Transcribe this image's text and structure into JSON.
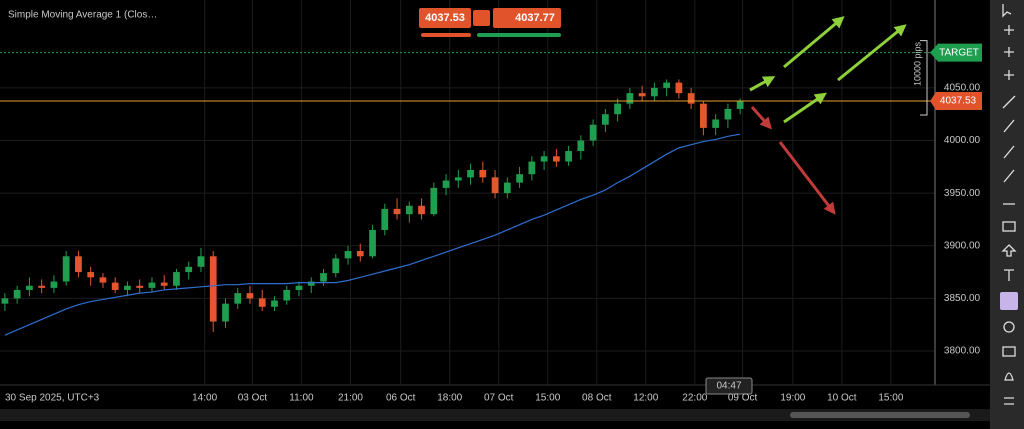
{
  "chart_data": {
    "type": "candlestick",
    "title": "Simple Moving Average 1 (Clos…",
    "x_start_label": "30 Sep 2025, UTC+3",
    "up_color": "#1f9e4f",
    "down_color": "#e4572e",
    "ohlc": [
      [
        3845,
        3855,
        3838,
        3850
      ],
      [
        3850,
        3862,
        3845,
        3858
      ],
      [
        3858,
        3870,
        3852,
        3862
      ],
      [
        3862,
        3868,
        3855,
        3860
      ],
      [
        3860,
        3872,
        3855,
        3866
      ],
      [
        3866,
        3895,
        3862,
        3890
      ],
      [
        3890,
        3895,
        3870,
        3875
      ],
      [
        3875,
        3880,
        3862,
        3870
      ],
      [
        3870,
        3874,
        3860,
        3865
      ],
      [
        3865,
        3870,
        3855,
        3858
      ],
      [
        3858,
        3866,
        3852,
        3862
      ],
      [
        3862,
        3868,
        3855,
        3860
      ],
      [
        3860,
        3870,
        3856,
        3865
      ],
      [
        3865,
        3872,
        3858,
        3862
      ],
      [
        3862,
        3878,
        3858,
        3875
      ],
      [
        3875,
        3885,
        3868,
        3880
      ],
      [
        3880,
        3898,
        3875,
        3890
      ],
      [
        3890,
        3895,
        3818,
        3828
      ],
      [
        3828,
        3850,
        3822,
        3845
      ],
      [
        3845,
        3860,
        3840,
        3855
      ],
      [
        3855,
        3862,
        3845,
        3850
      ],
      [
        3850,
        3858,
        3838,
        3842
      ],
      [
        3842,
        3852,
        3838,
        3848
      ],
      [
        3848,
        3862,
        3844,
        3858
      ],
      [
        3858,
        3866,
        3852,
        3862
      ],
      [
        3862,
        3870,
        3855,
        3866
      ],
      [
        3866,
        3878,
        3862,
        3874
      ],
      [
        3874,
        3892,
        3870,
        3888
      ],
      [
        3888,
        3900,
        3882,
        3895
      ],
      [
        3895,
        3902,
        3885,
        3890
      ],
      [
        3890,
        3920,
        3888,
        3915
      ],
      [
        3915,
        3940,
        3910,
        3935
      ],
      [
        3935,
        3945,
        3925,
        3930
      ],
      [
        3930,
        3942,
        3922,
        3938
      ],
      [
        3938,
        3945,
        3925,
        3930
      ],
      [
        3930,
        3960,
        3928,
        3955
      ],
      [
        3955,
        3968,
        3948,
        3962
      ],
      [
        3962,
        3972,
        3955,
        3965
      ],
      [
        3965,
        3978,
        3958,
        3972
      ],
      [
        3972,
        3980,
        3960,
        3965
      ],
      [
        3965,
        3972,
        3945,
        3950
      ],
      [
        3950,
        3965,
        3945,
        3960
      ],
      [
        3960,
        3975,
        3955,
        3968
      ],
      [
        3968,
        3985,
        3962,
        3980
      ],
      [
        3980,
        3990,
        3972,
        3985
      ],
      [
        3985,
        3992,
        3975,
        3980
      ],
      [
        3980,
        3995,
        3976,
        3990
      ],
      [
        3990,
        4005,
        3982,
        4000
      ],
      [
        4000,
        4020,
        3995,
        4015
      ],
      [
        4015,
        4030,
        4008,
        4025
      ],
      [
        4025,
        4040,
        4018,
        4035
      ],
      [
        4035,
        4050,
        4030,
        4045
      ],
      [
        4045,
        4052,
        4038,
        4042
      ],
      [
        4042,
        4055,
        4038,
        4050
      ],
      [
        4050,
        4058,
        4042,
        4055
      ],
      [
        4055,
        4058,
        4040,
        4045
      ],
      [
        4045,
        4050,
        4030,
        4035
      ],
      [
        4035,
        4038,
        4005,
        4012
      ],
      [
        4012,
        4025,
        4005,
        4020
      ],
      [
        4020,
        4035,
        4012,
        4030
      ],
      [
        4030,
        4040,
        4025,
        4037.53
      ]
    ],
    "sma": {
      "color": "#2e6fd0",
      "values": [
        3815,
        3820,
        3825,
        3830,
        3835,
        3840,
        3844,
        3847,
        3849,
        3851,
        3853,
        3855,
        3856,
        3858,
        3859,
        3860,
        3861,
        3862,
        3863,
        3863,
        3864,
        3864,
        3864,
        3864,
        3865,
        3865,
        3865,
        3865,
        3867,
        3870,
        3873,
        3876,
        3879,
        3882,
        3886,
        3890,
        3894,
        3898,
        3902,
        3906,
        3910,
        3915,
        3920,
        3925,
        3929,
        3934,
        3939,
        3944,
        3948,
        3953,
        3960,
        3966,
        3973,
        3980,
        3987,
        3993,
        3996,
        3999,
        4001,
        4004,
        4006
      ]
    },
    "xlim": [
      -0.4,
      75.9
    ],
    "ylim": [
      3767.7,
      4133.5
    ],
    "xticks": [
      {
        "value": 16.3,
        "label": "14:00"
      },
      {
        "value": 20.2,
        "label": "03 Oct"
      },
      {
        "value": 24.2,
        "label": "11:00"
      },
      {
        "value": 28.2,
        "label": "21:00"
      },
      {
        "value": 32.3,
        "label": "06 Oct"
      },
      {
        "value": 36.3,
        "label": "18:00"
      },
      {
        "value": 40.3,
        "label": "07 Oct"
      },
      {
        "value": 44.3,
        "label": "15:00"
      },
      {
        "value": 48.3,
        "label": "08 Oct"
      },
      {
        "value": 52.3,
        "label": "12:00"
      },
      {
        "value": 56.3,
        "label": "22:00"
      },
      {
        "value": 60.2,
        "label": "09 Oct"
      },
      {
        "value": 64.3,
        "label": "19:00"
      },
      {
        "value": 68.3,
        "label": "10 Oct"
      },
      {
        "value": 72.3,
        "label": "15:00"
      }
    ],
    "yticks": [
      {
        "value": 3800,
        "label": "3800.00"
      },
      {
        "value": 3850,
        "label": "3850.00"
      },
      {
        "value": 3900,
        "label": "3900.00"
      },
      {
        "value": 3950,
        "label": "3950.00"
      },
      {
        "value": 4000,
        "label": "4000.00"
      },
      {
        "value": 4050,
        "label": "4050.00"
      }
    ],
    "grid": true,
    "bid": 4037.53,
    "ask": 4037.77,
    "target": {
      "label": "TARGET",
      "value": 4083.5
    },
    "pips_label": "10000 pips",
    "timer": "04:47"
  }
}
